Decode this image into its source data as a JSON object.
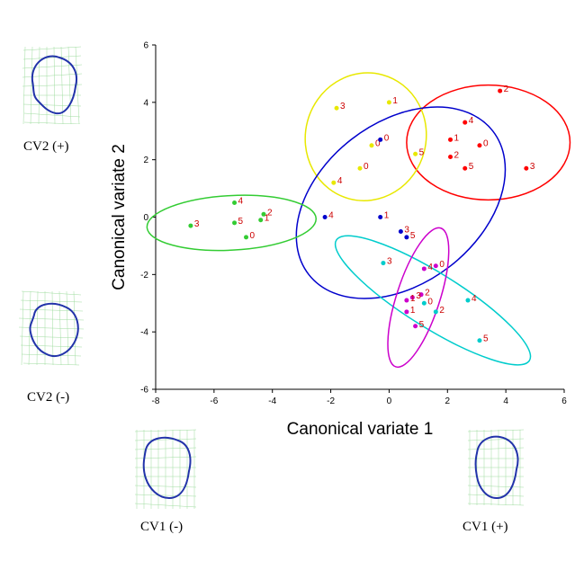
{
  "shape_captions": {
    "cv2_pos": "CV2 (+)",
    "cv2_neg": "CV2 (-)",
    "cv1_neg": "CV1 (-)",
    "cv1_pos": "CV1 (+)"
  },
  "chart_data": {
    "type": "scatter",
    "xlabel": "Canonical variate 1",
    "ylabel": "Canonical variate 2",
    "xlim": [
      -8,
      6
    ],
    "ylim": [
      -6,
      6
    ],
    "xticks": [
      -8,
      -6,
      -4,
      -2,
      0,
      2,
      4,
      6
    ],
    "yticks": [
      -6,
      -4,
      -2,
      0,
      2,
      4,
      6
    ],
    "grid": false,
    "label_color": "#cc0000",
    "series": [
      {
        "color": "#ff0000",
        "points": [
          {
            "x": 3.8,
            "y": 4.4,
            "label": "2"
          },
          {
            "x": 2.6,
            "y": 3.3,
            "label": "4"
          },
          {
            "x": 2.1,
            "y": 2.7,
            "label": "1"
          },
          {
            "x": 3.1,
            "y": 2.5,
            "label": "0"
          },
          {
            "x": 2.1,
            "y": 2.1,
            "label": "2"
          },
          {
            "x": 2.6,
            "y": 1.7,
            "label": "5"
          },
          {
            "x": 4.7,
            "y": 1.7,
            "label": "3"
          }
        ],
        "ellipse": {
          "cx": 3.4,
          "cy": 2.6,
          "rx": 2.8,
          "ry": 2.0,
          "angle": 0
        }
      },
      {
        "color": "#e8e800",
        "points": [
          {
            "x": 0.0,
            "y": 4.0,
            "label": "1"
          },
          {
            "x": -1.8,
            "y": 3.8,
            "label": "3"
          },
          {
            "x": -0.6,
            "y": 2.5,
            "label": "0"
          },
          {
            "x": 0.9,
            "y": 2.2,
            "label": "5"
          },
          {
            "x": -1.0,
            "y": 1.7,
            "label": "0"
          },
          {
            "x": -1.9,
            "y": 1.2,
            "label": "4"
          }
        ],
        "ellipse": {
          "cx": -0.8,
          "cy": 2.8,
          "rx": 2.2,
          "ry": 2.1,
          "angle": 75
        }
      },
      {
        "color": "#0000cc",
        "points": [
          {
            "x": -0.3,
            "y": 2.7,
            "label": "0"
          },
          {
            "x": -2.2,
            "y": 0.0,
            "label": "4"
          },
          {
            "x": -0.3,
            "y": 0.0,
            "label": "1"
          },
          {
            "x": 0.4,
            "y": -0.5,
            "label": "3"
          },
          {
            "x": 0.6,
            "y": -0.7,
            "label": "5"
          }
        ],
        "ellipse": {
          "cx": 0.4,
          "cy": 0.5,
          "rx": 4.0,
          "ry": 2.8,
          "angle": 38
        }
      },
      {
        "color": "#33cc33",
        "points": [
          {
            "x": -5.3,
            "y": 0.5,
            "label": "4"
          },
          {
            "x": -4.3,
            "y": 0.1,
            "label": "2"
          },
          {
            "x": -4.4,
            "y": -0.1,
            "label": "1"
          },
          {
            "x": -5.3,
            "y": -0.2,
            "label": "5"
          },
          {
            "x": -6.8,
            "y": -0.3,
            "label": "3"
          },
          {
            "x": -4.9,
            "y": -0.7,
            "label": "0"
          }
        ],
        "ellipse": {
          "cx": -5.4,
          "cy": -0.2,
          "rx": 2.9,
          "ry": 0.95,
          "angle": 3
        }
      },
      {
        "color": "#00cccc",
        "points": [
          {
            "x": -0.2,
            "y": -1.6,
            "label": "3"
          },
          {
            "x": 2.7,
            "y": -2.9,
            "label": "4"
          },
          {
            "x": 1.2,
            "y": -3.0,
            "label": "0"
          },
          {
            "x": 1.6,
            "y": -3.3,
            "label": "2"
          },
          {
            "x": 3.1,
            "y": -4.3,
            "label": "5"
          }
        ],
        "ellipse": {
          "cx": 1.5,
          "cy": -2.9,
          "rx": 3.9,
          "ry": 0.95,
          "angle": -32
        }
      },
      {
        "color": "#cc00cc",
        "points": [
          {
            "x": 1.6,
            "y": -1.7,
            "label": "0"
          },
          {
            "x": 1.2,
            "y": -1.8,
            "label": "4"
          },
          {
            "x": 1.1,
            "y": -2.7,
            "label": "2"
          },
          {
            "x": 0.8,
            "y": -2.8,
            "label": "3"
          },
          {
            "x": 0.6,
            "y": -2.9,
            "label": "1"
          },
          {
            "x": 0.6,
            "y": -3.3,
            "label": "1"
          },
          {
            "x": 0.9,
            "y": -3.8,
            "label": "5"
          }
        ],
        "ellipse": {
          "cx": 1.0,
          "cy": -2.8,
          "rx": 2.5,
          "ry": 0.75,
          "angle": 72
        }
      }
    ]
  }
}
